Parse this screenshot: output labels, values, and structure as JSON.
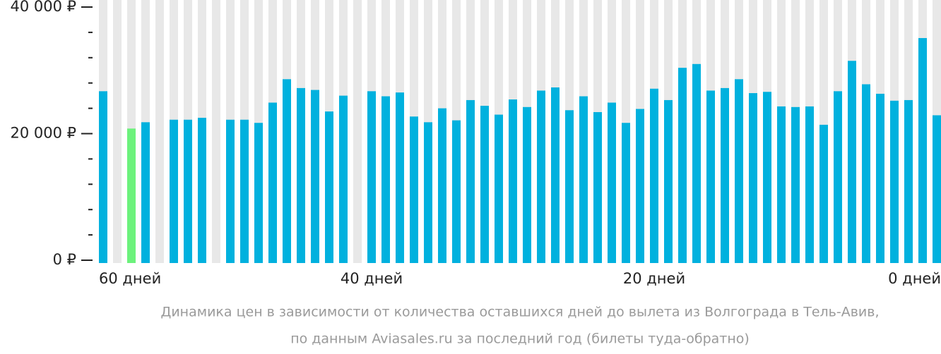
{
  "chart_data": {
    "type": "bar",
    "caption": [
      "Динамика цен в зависимости от количества оставшихся дней до вылета из Волгограда в Тель-Авив,",
      "по данным Aviasales.ru за последний год (билеты туда-обратно)"
    ],
    "categories": [
      "60 дней",
      null,
      null,
      null,
      null,
      null,
      null,
      null,
      null,
      null,
      null,
      null,
      null,
      null,
      null,
      null,
      null,
      null,
      null,
      "40 дней",
      null,
      null,
      null,
      null,
      null,
      null,
      null,
      null,
      null,
      null,
      null,
      null,
      null,
      null,
      null,
      null,
      null,
      null,
      null,
      "20 дней",
      null,
      null,
      null,
      null,
      null,
      null,
      null,
      null,
      null,
      null,
      null,
      null,
      null,
      null,
      null,
      null,
      null,
      null,
      null,
      "0 дней"
    ],
    "values": [
      26700,
      null,
      20800,
      21800,
      null,
      22200,
      22200,
      22500,
      null,
      22200,
      22200,
      21700,
      24900,
      28600,
      27200,
      26900,
      23500,
      26000,
      null,
      26700,
      25900,
      26500,
      22700,
      21800,
      24000,
      22100,
      25300,
      24400,
      23000,
      25400,
      24200,
      26800,
      27300,
      23700,
      25900,
      23400,
      24900,
      21700,
      23900,
      27100,
      25300,
      30400,
      31000,
      26800,
      27200,
      28600,
      26400,
      26600,
      24300,
      24200,
      24300,
      21400,
      26700,
      31500,
      27800,
      26300,
      25200,
      25300,
      35100,
      22900
    ],
    "color": "#00b1de",
    "highlight_color": "#6cf27c",
    "highlight_index": 2,
    "slot_color": "#e8e8e8",
    "ylim": [
      0,
      40000
    ],
    "yticks": [
      {
        "value": 0,
        "label": "0 ₽"
      },
      {
        "value": 20000,
        "label": "20 000 ₽"
      },
      {
        "value": 40000,
        "label": "40 000 ₽"
      }
    ],
    "minor_yticks": [
      4000,
      8000,
      12000,
      16000,
      24000,
      28000,
      32000,
      36000
    ]
  }
}
